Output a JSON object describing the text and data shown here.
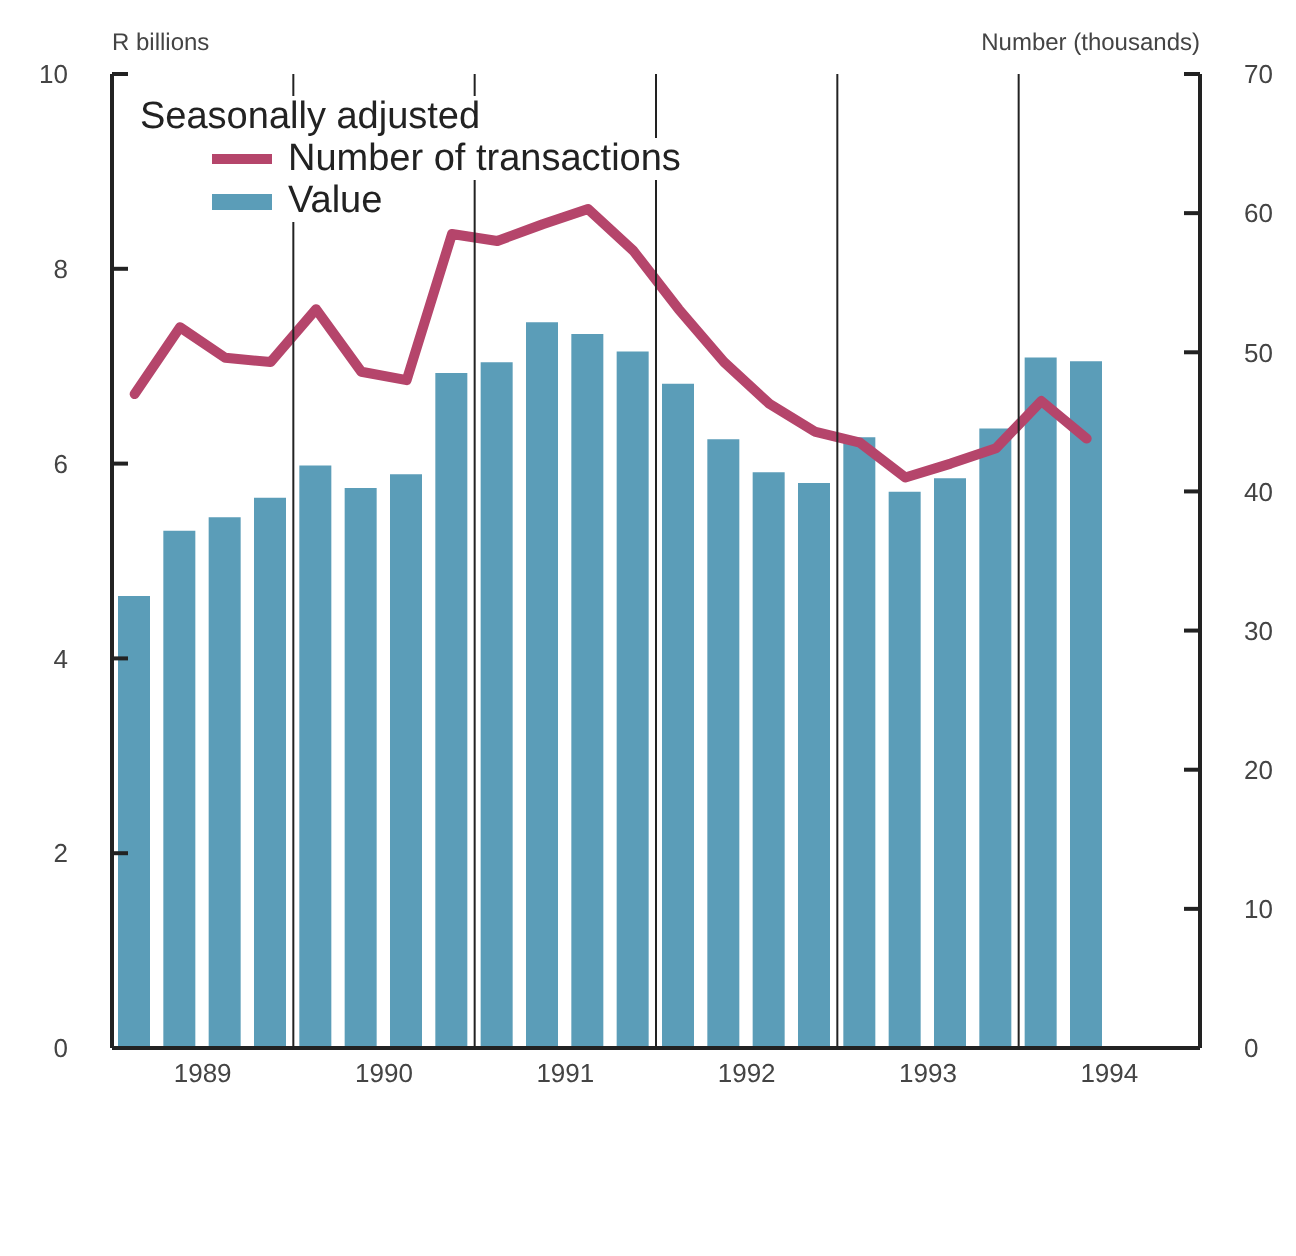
{
  "chart_data": {
    "type": "bar",
    "ylabel": "R billions",
    "y2label": "Number (thousands)",
    "legend_title": "Seasonally adjusted",
    "legend": "top left",
    "x": [
      1989.125,
      1989.375,
      1989.625,
      1989.875,
      1990.125,
      1990.375,
      1990.625,
      1990.875,
      1991.125,
      1991.375,
      1991.625,
      1991.875,
      1992.125,
      1992.375,
      1992.625,
      1992.875,
      1993.125,
      1993.375,
      1993.625,
      1993.875,
      1994.125,
      1994.375
    ],
    "xlim": [
      1989,
      1995
    ],
    "xticks": [
      {
        "value": 1989.5,
        "label": "1989"
      },
      {
        "value": 1990.5,
        "label": "1990"
      },
      {
        "value": 1991.5,
        "label": "1991"
      },
      {
        "value": 1992.5,
        "label": "1992"
      },
      {
        "value": 1993.5,
        "label": "1993"
      },
      {
        "value": 1994.5,
        "label": "1994"
      }
    ],
    "ylim": [
      0,
      10
    ],
    "yticks": [
      0,
      2,
      4,
      6,
      8,
      10
    ],
    "y2lim": [
      0,
      70
    ],
    "y2ticks": [
      0,
      10,
      20,
      30,
      40,
      50,
      60,
      70
    ],
    "series": [
      {
        "name": "Number of transactions",
        "type": "line",
        "axis": "y2",
        "color": "#b5456b",
        "values": [
          47.0,
          51.8,
          49.6,
          49.3,
          53.1,
          48.6,
          48.0,
          58.5,
          58.0,
          59.2,
          60.3,
          57.3,
          53.1,
          49.3,
          46.3,
          44.3,
          43.5,
          41.0,
          42.0,
          43.1,
          46.5,
          43.8
        ]
      },
      {
        "name": "Value",
        "color": "#5b9db8",
        "values": [
          4.64,
          5.31,
          5.45,
          5.65,
          5.98,
          5.75,
          5.89,
          6.93,
          7.04,
          7.45,
          7.33,
          7.15,
          6.82,
          6.25,
          5.91,
          5.8,
          6.27,
          5.71,
          5.85,
          6.36,
          7.09,
          7.05
        ]
      }
    ],
    "ref_lines": [
      {
        "axis": "x",
        "value": 1990,
        "color": "#222222"
      },
      {
        "axis": "x",
        "value": 1991,
        "color": "#222222"
      },
      {
        "axis": "x",
        "value": 1992,
        "color": "#222222"
      },
      {
        "axis": "x",
        "value": 1993,
        "color": "#222222"
      },
      {
        "axis": "x",
        "value": 1994,
        "color": "#222222"
      }
    ]
  }
}
